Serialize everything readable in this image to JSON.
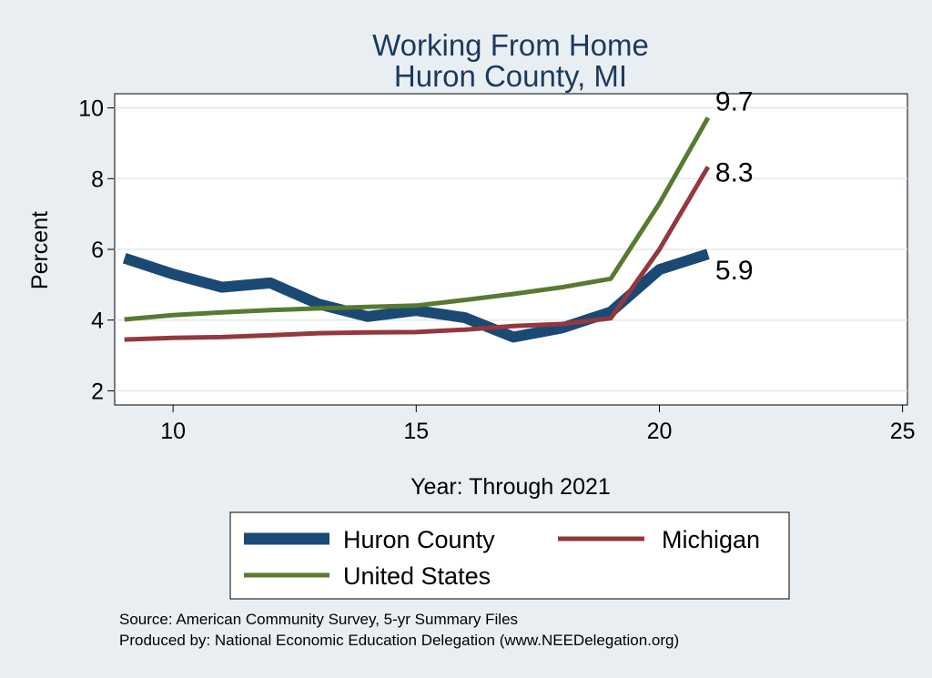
{
  "chart_data": {
    "type": "line",
    "title": [
      "Working From Home",
      "Huron County, MI"
    ],
    "xlabel": "Year: Through 2021",
    "ylabel": "Percent",
    "xlim": [
      8.8,
      25.1
    ],
    "ylim": [
      1.6,
      10.4
    ],
    "xticks": [
      10,
      15,
      20,
      25
    ],
    "yticks": [
      2,
      4,
      6,
      8,
      10
    ],
    "grid": true,
    "legend": "bottom",
    "x": [
      9,
      10,
      11,
      12,
      13,
      14,
      15,
      16,
      17,
      18,
      19,
      20,
      21
    ],
    "series": [
      {
        "name": "Huron County",
        "color": "#1a4a73",
        "values": [
          5.75,
          5.3,
          4.93,
          5.05,
          4.45,
          4.1,
          4.27,
          4.07,
          3.52,
          3.78,
          4.23,
          5.43,
          5.87
        ],
        "end_label": "5.9"
      },
      {
        "name": "Michigan",
        "color": "#94373f",
        "values": [
          3.45,
          3.5,
          3.52,
          3.57,
          3.63,
          3.65,
          3.66,
          3.73,
          3.83,
          3.89,
          4.05,
          6.0,
          8.33
        ],
        "end_label": "8.3"
      },
      {
        "name": "United States",
        "color": "#587a30",
        "values": [
          4.02,
          4.14,
          4.22,
          4.28,
          4.33,
          4.37,
          4.41,
          4.57,
          4.74,
          4.93,
          5.17,
          7.3,
          9.72
        ],
        "end_label": "9.7"
      }
    ],
    "notes": [
      "Source: American Community Survey, 5-yr Summary Files",
      "Produced by: National Economic Education Delegation (www.NEEDelegation.org)"
    ]
  }
}
